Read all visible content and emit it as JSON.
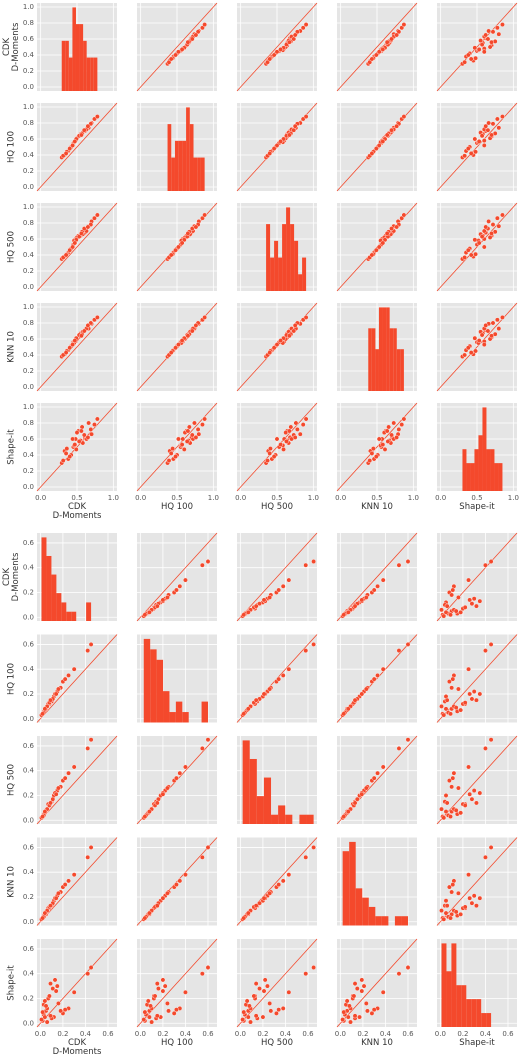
{
  "chart_data": [
    {
      "type": "pairplot",
      "color": "#f4492c",
      "background": "#e5e5e5",
      "grid": true,
      "identity_line": true,
      "diagonal": "hist",
      "xlim": [
        -0.05,
        1.05
      ],
      "ylim": [
        -0.05,
        1.05
      ],
      "xticks": [
        {
          "value": 0,
          "label": "0.0"
        },
        {
          "value": 0.5,
          "label": "0.5"
        },
        {
          "value": 1,
          "label": "1.0"
        }
      ],
      "yticks": [
        {
          "value": 0,
          "label": "0.0"
        },
        {
          "value": 0.2,
          "label": "0.2"
        },
        {
          "value": 0.4,
          "label": "0.4"
        },
        {
          "value": 0.6,
          "label": "0.6"
        },
        {
          "value": 0.8,
          "label": "0.8"
        },
        {
          "value": 1,
          "label": "1.0"
        }
      ],
      "variables": [
        {
          "name": "CDK\nD-Moments",
          "values": [
            0.45,
            0.52,
            0.38,
            0.61,
            0.7,
            0.33,
            0.48,
            0.55,
            0.42,
            0.66,
            0.29,
            0.58,
            0.74,
            0.5,
            0.36,
            0.63,
            0.46,
            0.57,
            0.4,
            0.69,
            0.53,
            0.31,
            0.44,
            0.6,
            0.78,
            0.49,
            0.35,
            0.56,
            0.65,
            0.47
          ]
        },
        {
          "name": "HQ 100",
          "values": [
            0.55,
            0.63,
            0.45,
            0.7,
            0.8,
            0.4,
            0.58,
            0.66,
            0.5,
            0.74,
            0.37,
            0.68,
            0.85,
            0.61,
            0.44,
            0.72,
            0.56,
            0.67,
            0.48,
            0.79,
            0.64,
            0.39,
            0.52,
            0.71,
            0.88,
            0.6,
            0.42,
            0.65,
            0.76,
            0.57
          ]
        },
        {
          "name": "HQ 500",
          "values": [
            0.53,
            0.64,
            0.43,
            0.68,
            0.82,
            0.38,
            0.6,
            0.64,
            0.48,
            0.76,
            0.35,
            0.66,
            0.86,
            0.62,
            0.41,
            0.7,
            0.58,
            0.69,
            0.46,
            0.78,
            0.63,
            0.37,
            0.5,
            0.73,
            0.9,
            0.59,
            0.4,
            0.67,
            0.75,
            0.55
          ]
        },
        {
          "name": "KNN 10",
          "values": [
            0.56,
            0.62,
            0.46,
            0.71,
            0.79,
            0.41,
            0.57,
            0.67,
            0.51,
            0.73,
            0.38,
            0.69,
            0.84,
            0.6,
            0.45,
            0.73,
            0.55,
            0.66,
            0.49,
            0.8,
            0.65,
            0.4,
            0.53,
            0.7,
            0.87,
            0.61,
            0.43,
            0.64,
            0.77,
            0.58
          ]
        },
        {
          "name": "Shape-it",
          "values": [
            0.5,
            0.7,
            0.35,
            0.62,
            0.66,
            0.45,
            0.6,
            0.58,
            0.4,
            0.8,
            0.3,
            0.55,
            0.78,
            0.68,
            0.48,
            0.6,
            0.52,
            0.75,
            0.38,
            0.72,
            0.57,
            0.33,
            0.6,
            0.65,
            0.85,
            0.47,
            0.42,
            0.7,
            0.62,
            0.53
          ]
        }
      ]
    },
    {
      "type": "pairplot",
      "color": "#f4492c",
      "background": "#e5e5e5",
      "grid": true,
      "identity_line": true,
      "diagonal": "hist",
      "xlim": [
        -0.03,
        0.68
      ],
      "ylim": [
        -0.03,
        0.68
      ],
      "xticks": [
        {
          "value": 0,
          "label": "0.0"
        },
        {
          "value": 0.2,
          "label": "0.2"
        },
        {
          "value": 0.4,
          "label": "0.4"
        },
        {
          "value": 0.6,
          "label": "0.6"
        }
      ],
      "yticks": [
        {
          "value": 0,
          "label": "0.0"
        },
        {
          "value": 0.2,
          "label": "0.2"
        },
        {
          "value": 0.4,
          "label": "0.4"
        },
        {
          "value": 0.6,
          "label": "0.6"
        }
      ],
      "variables": [
        {
          "name": "CDK\nD-Moments",
          "values": [
            0.05,
            0.12,
            0.03,
            0.08,
            0.2,
            0.02,
            0.15,
            0.06,
            0.1,
            0.3,
            0.04,
            0.09,
            0.42,
            0.07,
            0.01,
            0.18,
            0.11,
            0.05,
            0.25,
            0.13,
            0.03,
            0.08,
            0.45,
            0.06,
            0.16,
            0.02,
            0.09,
            0.22,
            0.04,
            0.14
          ]
        },
        {
          "name": "HQ 100",
          "values": [
            0.08,
            0.18,
            0.06,
            0.12,
            0.3,
            0.04,
            0.22,
            0.1,
            0.14,
            0.4,
            0.07,
            0.15,
            0.55,
            0.12,
            0.03,
            0.25,
            0.16,
            0.09,
            0.35,
            0.2,
            0.05,
            0.13,
            0.6,
            0.1,
            0.24,
            0.04,
            0.15,
            0.32,
            0.08,
            0.2
          ]
        },
        {
          "name": "HQ 500",
          "values": [
            0.07,
            0.2,
            0.05,
            0.13,
            0.32,
            0.03,
            0.24,
            0.09,
            0.15,
            0.43,
            0.06,
            0.14,
            0.58,
            0.13,
            0.02,
            0.27,
            0.17,
            0.08,
            0.38,
            0.22,
            0.04,
            0.12,
            0.65,
            0.09,
            0.26,
            0.03,
            0.14,
            0.34,
            0.07,
            0.21
          ]
        },
        {
          "name": "KNN 10",
          "values": [
            0.06,
            0.17,
            0.05,
            0.11,
            0.28,
            0.03,
            0.21,
            0.09,
            0.13,
            0.38,
            0.06,
            0.13,
            0.52,
            0.11,
            0.02,
            0.24,
            0.15,
            0.08,
            0.33,
            0.19,
            0.04,
            0.12,
            0.6,
            0.09,
            0.23,
            0.03,
            0.13,
            0.3,
            0.07,
            0.19
          ]
        },
        {
          "name": "Shape-it",
          "values": [
            0.1,
            0.05,
            0.15,
            0.22,
            0.08,
            0.02,
            0.3,
            0.12,
            0.04,
            0.25,
            0.18,
            0.06,
            0.4,
            0.2,
            0.03,
            0.1,
            0.28,
            0.14,
            0.12,
            0.35,
            0.07,
            0.22,
            0.45,
            0.01,
            0.16,
            0.09,
            0.32,
            0.11,
            0.05,
            0.26
          ]
        }
      ]
    }
  ]
}
